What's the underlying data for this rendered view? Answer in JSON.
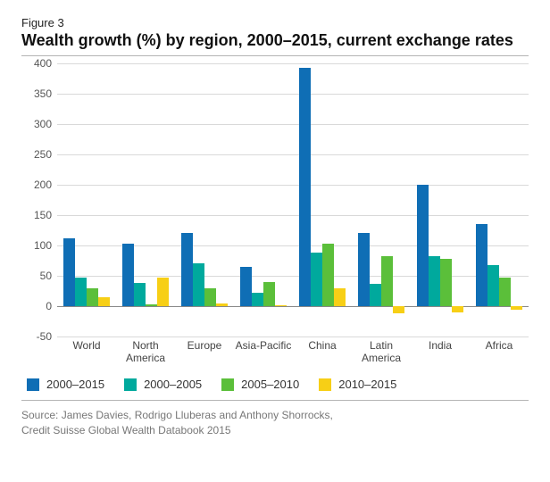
{
  "figure_label": "Figure 3",
  "title": "Wealth growth (%) by region, 2000–2015, current exchange rates",
  "source_line1": "Source: James Davies, Rodrigo Lluberas and Anthony Shorrocks,",
  "source_line2": "Credit Suisse Global Wealth Databook 2015",
  "chart": {
    "type": "bar",
    "background_color": "#ffffff",
    "grid_color": "#d9d9d9",
    "axis_color": "#888888",
    "ylim": [
      -50,
      400
    ],
    "ytick_step": 50,
    "yticks": [
      -50,
      0,
      50,
      100,
      150,
      200,
      250,
      300,
      350,
      400
    ],
    "label_fontsize": 12,
    "bar_gap": 2,
    "group_inner_width_ratio": 0.78,
    "categories": [
      "World",
      "North\nAmerica",
      "Europe",
      "Asia-Pacific",
      "China",
      "Latin\nAmerica",
      "India",
      "Africa"
    ],
    "series": [
      {
        "label": "2000–2015",
        "color": "#0f6eb5",
        "values": [
          112,
          103,
          120,
          65,
          392,
          120,
          200,
          135
        ]
      },
      {
        "label": "2000–2005",
        "color": "#00a99d",
        "values": [
          47,
          38,
          70,
          22,
          88,
          37,
          82,
          67
        ]
      },
      {
        "label": "2005–2010",
        "color": "#5bbf3a",
        "values": [
          30,
          3,
          30,
          40,
          103,
          82,
          78,
          47
        ]
      },
      {
        "label": "2010–2015",
        "color": "#f7cf16",
        "values": [
          15,
          47,
          4,
          2,
          30,
          -12,
          -10,
          -6
        ]
      }
    ]
  },
  "legend_labels": {
    "s0": "2000–2015",
    "s1": "2000–2005",
    "s2": "2005–2010",
    "s3": "2010–2015"
  }
}
